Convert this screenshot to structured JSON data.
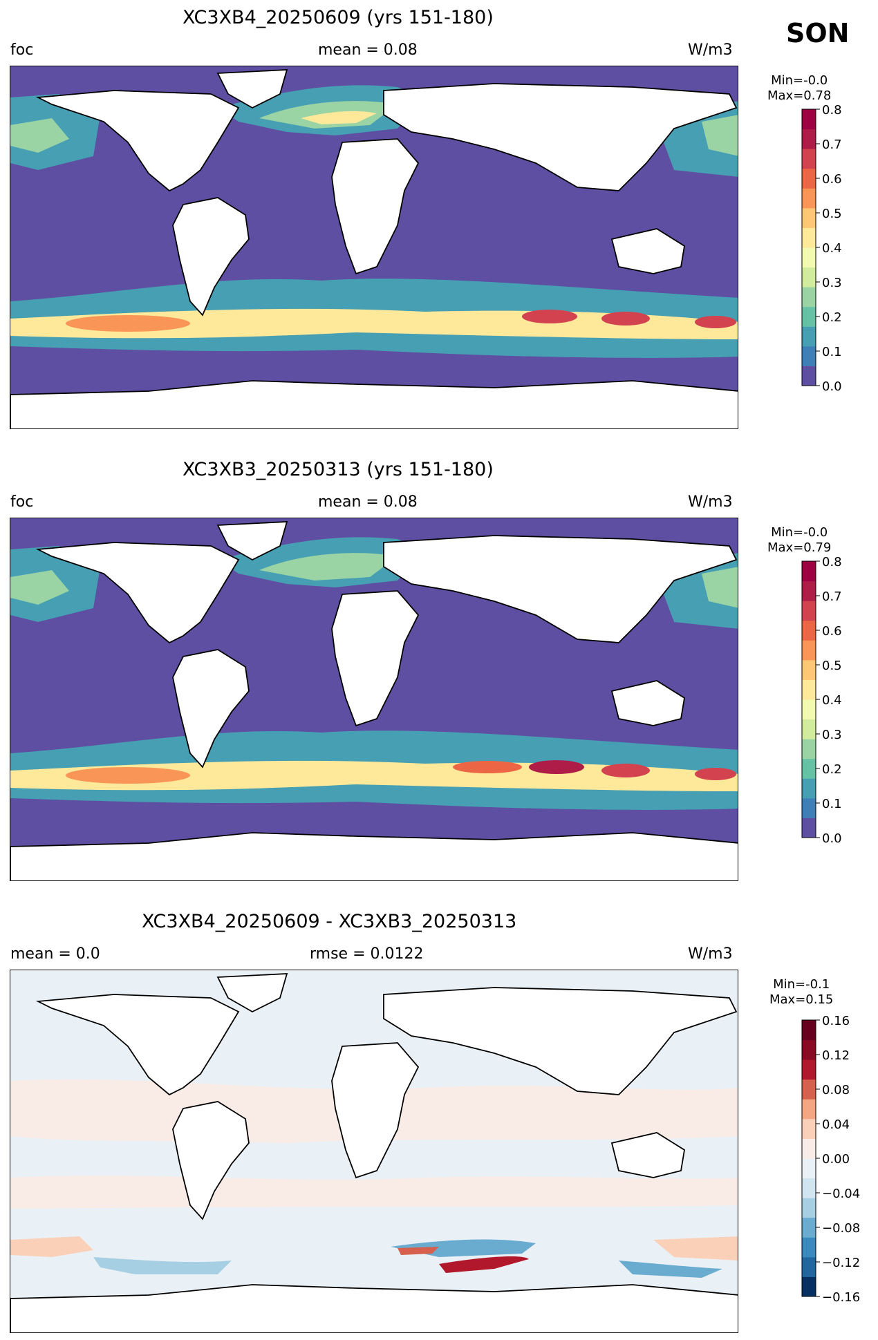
{
  "season": "SON",
  "panels": [
    {
      "title": "XC3XB4_20250609 (yrs 151-180)",
      "left_label": "foc",
      "center_label": "mean = 0.08",
      "right_label": "W/m3",
      "min_label": "Min=-0.0",
      "max_label": "Max=0.78",
      "colormap": "Spectral_r",
      "colorbar_ticks": [
        "0.0",
        "0.1",
        "0.2",
        "0.3",
        "0.4",
        "0.5",
        "0.6",
        "0.7",
        "0.8"
      ],
      "colorbar_range": [
        0.0,
        0.8
      ]
    },
    {
      "title": "XC3XB3_20250313 (yrs 151-180)",
      "left_label": "foc",
      "center_label": "mean = 0.08",
      "right_label": "W/m3",
      "min_label": "Min=-0.0",
      "max_label": "Max=0.79",
      "colormap": "Spectral_r",
      "colorbar_ticks": [
        "0.0",
        "0.1",
        "0.2",
        "0.3",
        "0.4",
        "0.5",
        "0.6",
        "0.7",
        "0.8"
      ],
      "colorbar_range": [
        0.0,
        0.8
      ]
    },
    {
      "title": "XC3XB4_20250609 - XC3XB3_20250313",
      "left_label": "mean = 0.0",
      "center_label": "rmse = 0.0122",
      "right_label": "W/m3",
      "min_label": "Min=-0.1",
      "max_label": "Max=0.15",
      "colormap": "RdBu_r",
      "colorbar_ticks": [
        "−0.16",
        "−0.12",
        "−0.08",
        "−0.04",
        "0.00",
        "0.04",
        "0.08",
        "0.12",
        "0.16"
      ],
      "colorbar_range": [
        -0.16,
        0.16
      ]
    }
  ],
  "colors": {
    "spectral": [
      "#5e4fa2",
      "#3f7fb8",
      "#479fb3",
      "#66c2a5",
      "#9ad4a4",
      "#d0ec9c",
      "#f2fab0",
      "#fee89a",
      "#fdc776",
      "#f99556",
      "#ec6645",
      "#d3424f",
      "#b01c48",
      "#9e0142"
    ],
    "rdbu": [
      "#053061",
      "#21669f",
      "#3a8ac0",
      "#6aabd0",
      "#a7cfe4",
      "#d1e5f0",
      "#eaf1f6",
      "#f9ece6",
      "#fbd0b9",
      "#f4a582",
      "#d6604d",
      "#b2182b",
      "#8a0a25",
      "#67001f"
    ]
  }
}
